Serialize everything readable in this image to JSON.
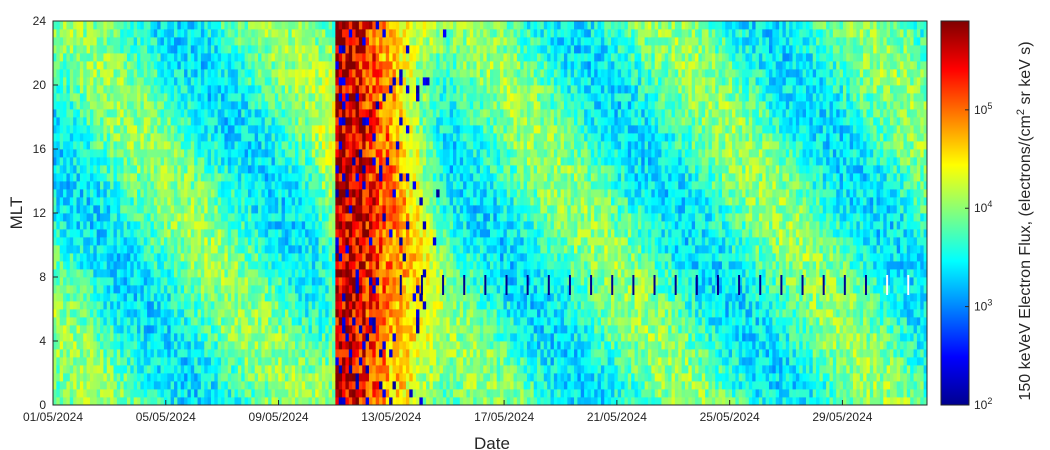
{
  "chart_data": {
    "type": "heatmap",
    "title": "",
    "xlabel": "Date",
    "ylabel": "MLT",
    "x_tick_labels": [
      "01/05/2024",
      "05/05/2024",
      "09/05/2024",
      "13/05/2024",
      "17/05/2024",
      "21/05/2024",
      "25/05/2024",
      "29/05/2024"
    ],
    "x_range": [
      "01/05/2024",
      "01/06/2024"
    ],
    "y_ticks": [
      0,
      4,
      8,
      12,
      16,
      20,
      24
    ],
    "ylim": [
      0,
      24
    ],
    "colorbar": {
      "label": "150 keVeV Electron Flux, (electrons/(cm",
      "label_sup": "2",
      "label_end": " sr keV s)",
      "scale": "log",
      "range": [
        100,
        800000
      ],
      "tick_values": [
        100,
        1000,
        10000,
        100000
      ],
      "tick_labels": [
        {
          "base": "10",
          "exp": "2"
        },
        {
          "base": "10",
          "exp": "3"
        },
        {
          "base": "10",
          "exp": "4"
        },
        {
          "base": "10",
          "exp": "5"
        }
      ],
      "colormap": "jet"
    },
    "features": {
      "storm_onset": "10/05/2024",
      "storm_peak": "11/05/2024 - 13/05/2024",
      "peak_flux": 800000,
      "background_flux": 5000,
      "data_gaps_mlt": 7.5
    }
  }
}
